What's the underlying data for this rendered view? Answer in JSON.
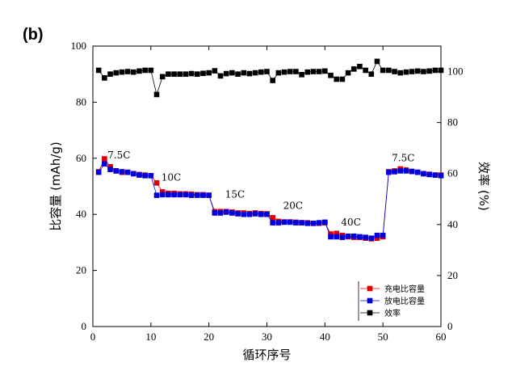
{
  "panel_label": "(b)",
  "chart_data": {
    "type": "scatter",
    "xlabel": "循环序号",
    "ylabel": "比容量 (mAh/g)",
    "y2label": "效率 (%)",
    "xlim": [
      0,
      60
    ],
    "ylim": [
      0,
      100
    ],
    "y2lim": [
      0,
      110
    ],
    "xticks": [
      "0",
      "10",
      "20",
      "30",
      "40",
      "50",
      "60"
    ],
    "yticks": [
      "0",
      "20",
      "40",
      "60",
      "80",
      "100"
    ],
    "y2ticks": [
      "0",
      "20",
      "40",
      "60",
      "80",
      "100"
    ],
    "grid": false,
    "legend_position": "lower-right",
    "annotations": [
      {
        "text": "7.5C",
        "x": 4.5,
        "y": 60
      },
      {
        "text": "10C",
        "x": 13.5,
        "y": 52
      },
      {
        "text": "15C",
        "x": 24.5,
        "y": 46
      },
      {
        "text": "20C",
        "x": 34.5,
        "y": 42
      },
      {
        "text": "40C",
        "x": 44.5,
        "y": 36
      },
      {
        "text": "7.5C",
        "x": 53.5,
        "y": 59
      }
    ],
    "series": [
      {
        "name": "充电比容量",
        "color": "#e00000",
        "marker": "square",
        "axis": "left",
        "x": [
          1,
          2,
          3,
          4,
          5,
          6,
          7,
          8,
          9,
          10,
          11,
          12,
          13,
          14,
          15,
          16,
          17,
          18,
          19,
          20,
          21,
          22,
          23,
          24,
          25,
          26,
          27,
          28,
          29,
          30,
          31,
          32,
          33,
          34,
          35,
          36,
          37,
          38,
          39,
          40,
          41,
          42,
          43,
          44,
          45,
          46,
          47,
          48,
          49,
          50,
          51,
          52,
          53,
          54,
          55,
          56,
          57,
          58,
          59,
          60
        ],
        "values": [
          55.2,
          59.8,
          57.0,
          55.5,
          55.0,
          55.0,
          54.5,
          54.2,
          54.0,
          53.8,
          51.2,
          48.0,
          47.5,
          47.5,
          47.3,
          47.3,
          47.2,
          47.0,
          47.0,
          46.8,
          41.0,
          41.0,
          41.0,
          40.8,
          40.5,
          40.5,
          40.3,
          40.5,
          40.3,
          40.2,
          38.8,
          37.5,
          37.3,
          37.3,
          37.2,
          37.0,
          37.0,
          36.8,
          36.8,
          37.0,
          33.0,
          33.2,
          32.5,
          32.0,
          31.8,
          31.8,
          31.5,
          31.3,
          31.5,
          32.0,
          55.2,
          55.5,
          56.2,
          55.8,
          55.3,
          55.0,
          54.5,
          54.3,
          54.0,
          54.0
        ]
      },
      {
        "name": "放电比容量",
        "color": "#0000dd",
        "marker": "square",
        "axis": "left",
        "x": [
          1,
          2,
          3,
          4,
          5,
          6,
          7,
          8,
          9,
          10,
          11,
          12,
          13,
          14,
          15,
          16,
          17,
          18,
          19,
          20,
          21,
          22,
          23,
          24,
          25,
          26,
          27,
          28,
          29,
          30,
          31,
          32,
          33,
          34,
          35,
          36,
          37,
          38,
          39,
          40,
          41,
          42,
          43,
          44,
          45,
          46,
          47,
          48,
          49,
          50,
          51,
          52,
          53,
          54,
          55,
          56,
          57,
          58,
          59,
          60
        ],
        "values": [
          55.0,
          58.0,
          56.0,
          55.5,
          55.2,
          55.0,
          54.5,
          54.0,
          53.8,
          53.8,
          46.8,
          47.0,
          47.0,
          47.0,
          47.0,
          47.0,
          46.8,
          46.8,
          46.8,
          46.8,
          40.5,
          40.5,
          40.8,
          40.5,
          40.2,
          40.0,
          40.0,
          40.2,
          40.0,
          40.0,
          37.0,
          37.0,
          37.2,
          37.2,
          37.0,
          37.0,
          36.8,
          36.8,
          37.0,
          37.2,
          32.0,
          32.0,
          31.8,
          32.2,
          32.2,
          32.0,
          31.8,
          31.5,
          32.5,
          32.5,
          55.0,
          55.2,
          55.5,
          55.5,
          55.3,
          55.0,
          54.5,
          54.2,
          54.0,
          53.8
        ]
      },
      {
        "name": "效率",
        "color": "#000000",
        "marker": "square",
        "axis": "right",
        "x": [
          1,
          2,
          3,
          4,
          5,
          6,
          7,
          8,
          9,
          10,
          11,
          12,
          13,
          14,
          15,
          16,
          17,
          18,
          19,
          20,
          21,
          22,
          23,
          24,
          25,
          26,
          27,
          28,
          29,
          30,
          31,
          32,
          33,
          34,
          35,
          36,
          37,
          38,
          39,
          40,
          41,
          42,
          43,
          44,
          45,
          46,
          47,
          48,
          49,
          50,
          51,
          52,
          53,
          54,
          55,
          56,
          57,
          58,
          59,
          60
        ],
        "values": [
          100.5,
          97.5,
          99,
          99.5,
          99.8,
          100,
          99.8,
          100.2,
          100.5,
          100.5,
          91,
          98,
          99,
          99,
          99,
          99,
          99.2,
          99,
          99.3,
          99.5,
          100.3,
          98.3,
          99.2,
          99.5,
          99,
          99.5,
          99.2,
          99.5,
          99.8,
          100,
          96.5,
          99.5,
          99.8,
          100,
          100,
          98.8,
          99.8,
          100,
          100,
          100.2,
          98.5,
          97,
          97,
          99.5,
          101,
          102,
          100.5,
          99,
          104,
          100.5,
          100.5,
          100,
          99.5,
          99.8,
          100,
          100.2,
          100,
          100.2,
          100.5,
          100.5
        ]
      }
    ]
  }
}
